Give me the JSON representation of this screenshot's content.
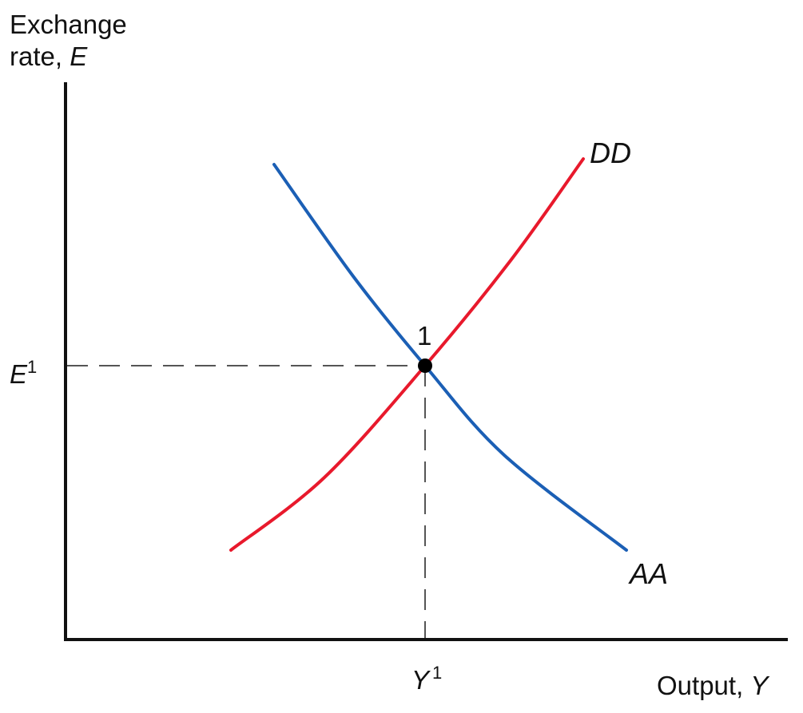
{
  "chart_data": {
    "type": "line",
    "title": "",
    "ylabel": {
      "line1": "Exchange",
      "line2_prefix": "rate, ",
      "symbol": "E"
    },
    "xlabel": {
      "prefix": "Output, ",
      "symbol": "Y"
    },
    "xlim": [
      0,
      10
    ],
    "ylim": [
      0,
      10
    ],
    "grid": false,
    "series": [
      {
        "name": "DD",
        "color": "#e8192c",
        "points": [
          [
            2.3,
            1.6
          ],
          [
            3.6,
            2.9
          ],
          [
            5.0,
            4.9
          ],
          [
            6.2,
            6.8
          ],
          [
            7.2,
            8.6
          ]
        ]
      },
      {
        "name": "AA",
        "color": "#1b5fb5",
        "points": [
          [
            2.9,
            8.5
          ],
          [
            4.0,
            6.5
          ],
          [
            5.0,
            4.9
          ],
          [
            6.1,
            3.3
          ],
          [
            7.8,
            1.6
          ]
        ]
      }
    ],
    "equilibrium": {
      "label": "1",
      "x": 5.0,
      "y": 4.9,
      "x_tick": {
        "base": "Y",
        "sup": "1"
      },
      "y_tick": {
        "base": "E",
        "sup": "1"
      }
    }
  }
}
